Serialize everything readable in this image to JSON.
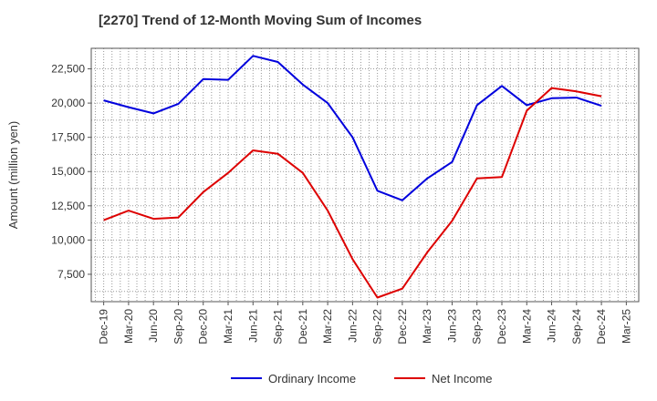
{
  "chart_data": {
    "type": "line",
    "title": "[2270]  Trend of 12-Month Moving Sum of Incomes",
    "xlabel": "",
    "ylabel": "Amount (million yen)",
    "categories": [
      "Dec-19",
      "Mar-20",
      "Jun-20",
      "Sep-20",
      "Dec-20",
      "Mar-21",
      "Jun-21",
      "Sep-21",
      "Dec-21",
      "Mar-22",
      "Jun-22",
      "Sep-22",
      "Dec-22",
      "Mar-23",
      "Jun-23",
      "Sep-23",
      "Dec-23",
      "Mar-24",
      "Jun-24",
      "Sep-24",
      "Dec-24",
      "Mar-25"
    ],
    "ylim": [
      5500,
      24000
    ],
    "yticks": [
      7500,
      10000,
      12500,
      15000,
      17500,
      20000,
      22500
    ],
    "ytick_labels": [
      "7,500",
      "10,000",
      "12,500",
      "15,000",
      "17,500",
      "20,000",
      "22,500"
    ],
    "grid": true,
    "legend_position": "bottom",
    "series": [
      {
        "name": "Ordinary Income",
        "color": "#0000dd",
        "values": [
          20200,
          19700,
          19250,
          19950,
          21750,
          21700,
          23450,
          23000,
          21350,
          20000,
          17500,
          13600,
          12900,
          14500,
          15700,
          19850,
          21250,
          19850,
          20350,
          20400,
          19800,
          null
        ]
      },
      {
        "name": "Net Income",
        "color": "#dd0000",
        "values": [
          11450,
          12150,
          11550,
          11650,
          13500,
          14900,
          16550,
          16300,
          14900,
          12150,
          8600,
          5800,
          6450,
          9100,
          11400,
          14500,
          14600,
          19450,
          21100,
          20850,
          20500,
          null
        ]
      }
    ]
  }
}
